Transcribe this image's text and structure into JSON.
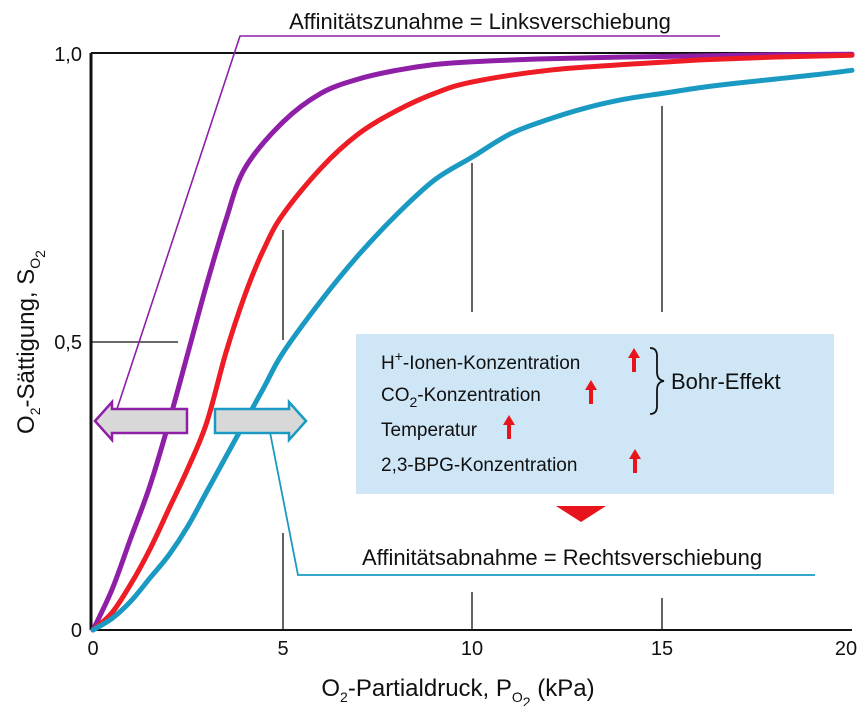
{
  "colors": {
    "purple": "#8e1fa6",
    "red": "#ee1c25",
    "blue": "#1a9ac2",
    "box": "#cfe6f6",
    "arrow_fill": "#d8d8d8",
    "up_arrow": "#e8141b"
  },
  "annotations": {
    "left_shift": "Affinitätszunahme = Linksverschiebung",
    "right_shift": "Affinitätsabnahme = Rechtsverschiebung"
  },
  "factors": {
    "h_ions": {
      "main": "H",
      "sup": "+",
      "rest": "-Ionen-Konzentration"
    },
    "co2": {
      "main": "CO",
      "sub": "2",
      "rest": "-Konzentration"
    },
    "temp": "Temperatur",
    "bpg": "2,3-BPG-Konzentration",
    "bohr": "Bohr-Effekt"
  },
  "chart_data": {
    "type": "line",
    "xlabel": {
      "main": "O",
      "sub": "2",
      "mid": "-Partialdruck, P",
      "sub2": "O",
      "sub3": "2",
      "unit": " (kPa)"
    },
    "ylabel": {
      "main": "O",
      "sub": "2",
      "mid": "-Sättigung, S",
      "sub2": "O",
      "sub3": "2"
    },
    "xlim": [
      0,
      20
    ],
    "ylim": [
      0,
      1
    ],
    "x_ticks": [
      "0",
      "5",
      "10",
      "15",
      "20"
    ],
    "y_ticks": [
      "0",
      "0,5",
      "1,0"
    ],
    "legend": "none",
    "series": [
      {
        "color": "purple",
        "x": [
          0,
          0.5,
          1,
          1.5,
          2,
          2.5,
          3,
          3.5,
          4,
          5,
          6,
          7,
          8,
          9,
          10,
          12,
          14,
          16,
          18,
          20
        ],
        "y": [
          0,
          0.07,
          0.16,
          0.25,
          0.36,
          0.48,
          0.6,
          0.71,
          0.8,
          0.88,
          0.93,
          0.955,
          0.97,
          0.98,
          0.985,
          0.99,
          0.993,
          0.995,
          0.997,
          0.998
        ]
      },
      {
        "color": "red",
        "x": [
          0,
          0.5,
          1,
          1.5,
          2,
          2.5,
          3,
          3.5,
          4,
          4.5,
          5,
          6,
          7,
          8,
          9,
          10,
          12,
          14,
          16,
          18,
          20
        ],
        "y": [
          0,
          0.03,
          0.08,
          0.14,
          0.21,
          0.28,
          0.36,
          0.48,
          0.58,
          0.66,
          0.72,
          0.8,
          0.86,
          0.9,
          0.93,
          0.95,
          0.97,
          0.98,
          0.988,
          0.993,
          0.996
        ]
      },
      {
        "color": "blue",
        "x": [
          0,
          0.5,
          1,
          1.5,
          2,
          2.5,
          3,
          3.5,
          4,
          4.5,
          5,
          6,
          7,
          8,
          9,
          10,
          11,
          12,
          13,
          14,
          15,
          16,
          17,
          18,
          19,
          20
        ],
        "y": [
          0,
          0.02,
          0.05,
          0.09,
          0.13,
          0.18,
          0.24,
          0.3,
          0.36,
          0.42,
          0.48,
          0.57,
          0.65,
          0.72,
          0.78,
          0.82,
          0.86,
          0.885,
          0.905,
          0.92,
          0.93,
          0.94,
          0.948,
          0.955,
          0.962,
          0.97
        ]
      }
    ]
  }
}
